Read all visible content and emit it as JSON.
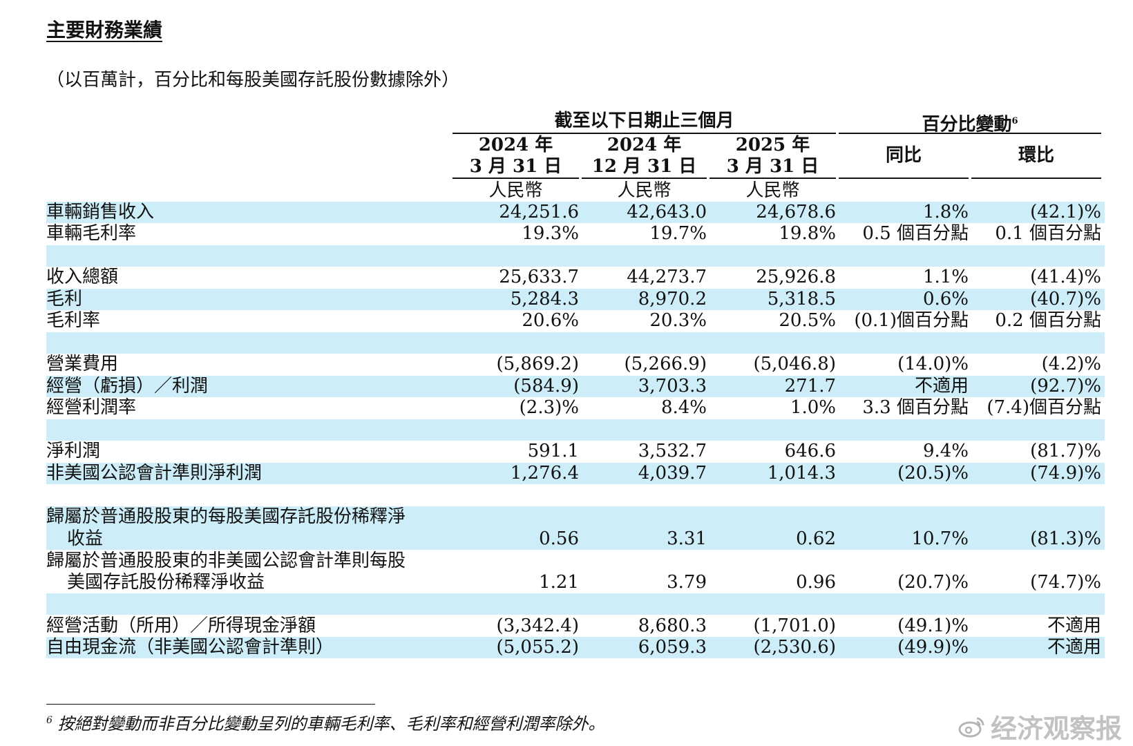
{
  "title": "主要財務業績",
  "subtitle": "（以百萬計，百分比和每股美國存託股份數據除外）",
  "header": {
    "group_period": "截至以下日期止三個月",
    "group_change": "百分比變動",
    "group_change_footnote": "6",
    "col1_year": "2024 年",
    "col1_date": "3 月 31 日",
    "col2_year": "2024 年",
    "col2_date": "12 月 31 日",
    "col3_year": "2025 年",
    "col3_date": "3 月 31 日",
    "col4": "同比",
    "col5": "環比",
    "currency": "人民幣"
  },
  "rows": [
    {
      "label": "車輛銷售收入",
      "v": [
        "24,251.6",
        "42,643.0",
        "24,678.6",
        "1.8%",
        "(42.1)%"
      ]
    },
    {
      "label": "車輛毛利率",
      "v": [
        "19.3%",
        "19.7%",
        "19.8%",
        "0.5 個百分點",
        "0.1 個百分點"
      ]
    },
    {
      "label": "收入總額",
      "v": [
        "25,633.7",
        "44,273.7",
        "25,926.8",
        "1.1%",
        "(41.4)%"
      ]
    },
    {
      "label": "毛利",
      "v": [
        "5,284.3",
        "8,970.2",
        "5,318.5",
        "0.6%",
        "(40.7)%"
      ]
    },
    {
      "label": "毛利率",
      "v": [
        "20.6%",
        "20.3%",
        "20.5%",
        "(0.1)個百分點",
        "0.2 個百分點"
      ]
    },
    {
      "label": "營業費用",
      "v": [
        "(5,869.2)",
        "(5,266.9)",
        "(5,046.8)",
        "(14.0)%",
        "(4.2)%"
      ]
    },
    {
      "label": "經營（虧損）／利潤",
      "v": [
        "(584.9)",
        "3,703.3",
        "271.7",
        "不適用",
        "(92.7)%"
      ]
    },
    {
      "label": "經營利潤率",
      "v": [
        "(2.3)%",
        "8.4%",
        "1.0%",
        "3.3 個百分點",
        "(7.4)個百分點"
      ]
    },
    {
      "label": "淨利潤",
      "v": [
        "591.1",
        "3,532.7",
        "646.6",
        "9.4%",
        "(81.7)%"
      ]
    },
    {
      "label": "非美國公認會計準則淨利潤",
      "v": [
        "1,276.4",
        "4,039.7",
        "1,014.3",
        "(20.5)%",
        "(74.9)%"
      ]
    },
    {
      "label": "歸屬於普通股股東的每股美國存託股份稀釋淨",
      "label2": "收益",
      "v": [
        "0.56",
        "3.31",
        "0.62",
        "10.7%",
        "(81.3)%"
      ]
    },
    {
      "label": "歸屬於普通股股東的非美國公認會計準則每股",
      "label2": "美國存託股份稀釋淨收益",
      "v": [
        "1.21",
        "3.79",
        "0.96",
        "(20.7)%",
        "(74.7)%"
      ]
    },
    {
      "label": "經營活動（所用）／所得現金淨額",
      "v": [
        "(3,342.4)",
        "8,680.3",
        "(1,701.0)",
        "(49.1)%",
        "不適用"
      ]
    },
    {
      "label": "自由現金流（非美國公認會計準則）",
      "v": [
        "(5,055.2)",
        "6,059.3",
        "(2,530.6)",
        "(49.9)%",
        "不適用"
      ]
    }
  ],
  "footnote": {
    "mark": "6",
    "text": " 按絕對變動而非百分比變動呈列的車輛毛利率、毛利率和經營利潤率除外。"
  },
  "watermark": "经济观察报",
  "colors": {
    "highlight": "#cdeef8",
    "text": "#111111"
  }
}
